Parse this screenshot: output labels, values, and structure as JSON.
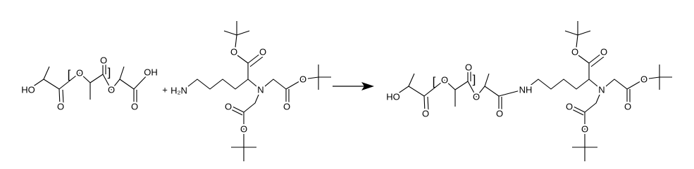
{
  "reactant_1": {
    "labels": [
      "HO",
      "O",
      "[",
      "O",
      "O",
      "]",
      "O",
      "O",
      "OH"
    ]
  },
  "plus": "+",
  "reactant_2": {
    "labels": [
      "H₂N",
      "O",
      "O",
      "N",
      "O",
      "O",
      "O",
      "O"
    ]
  },
  "product": {
    "labels": [
      "HO",
      "O",
      "[",
      "O",
      "O",
      "]",
      "O",
      "O",
      "NH",
      "O",
      "O",
      "N",
      "O",
      "O",
      "O",
      "O"
    ]
  }
}
